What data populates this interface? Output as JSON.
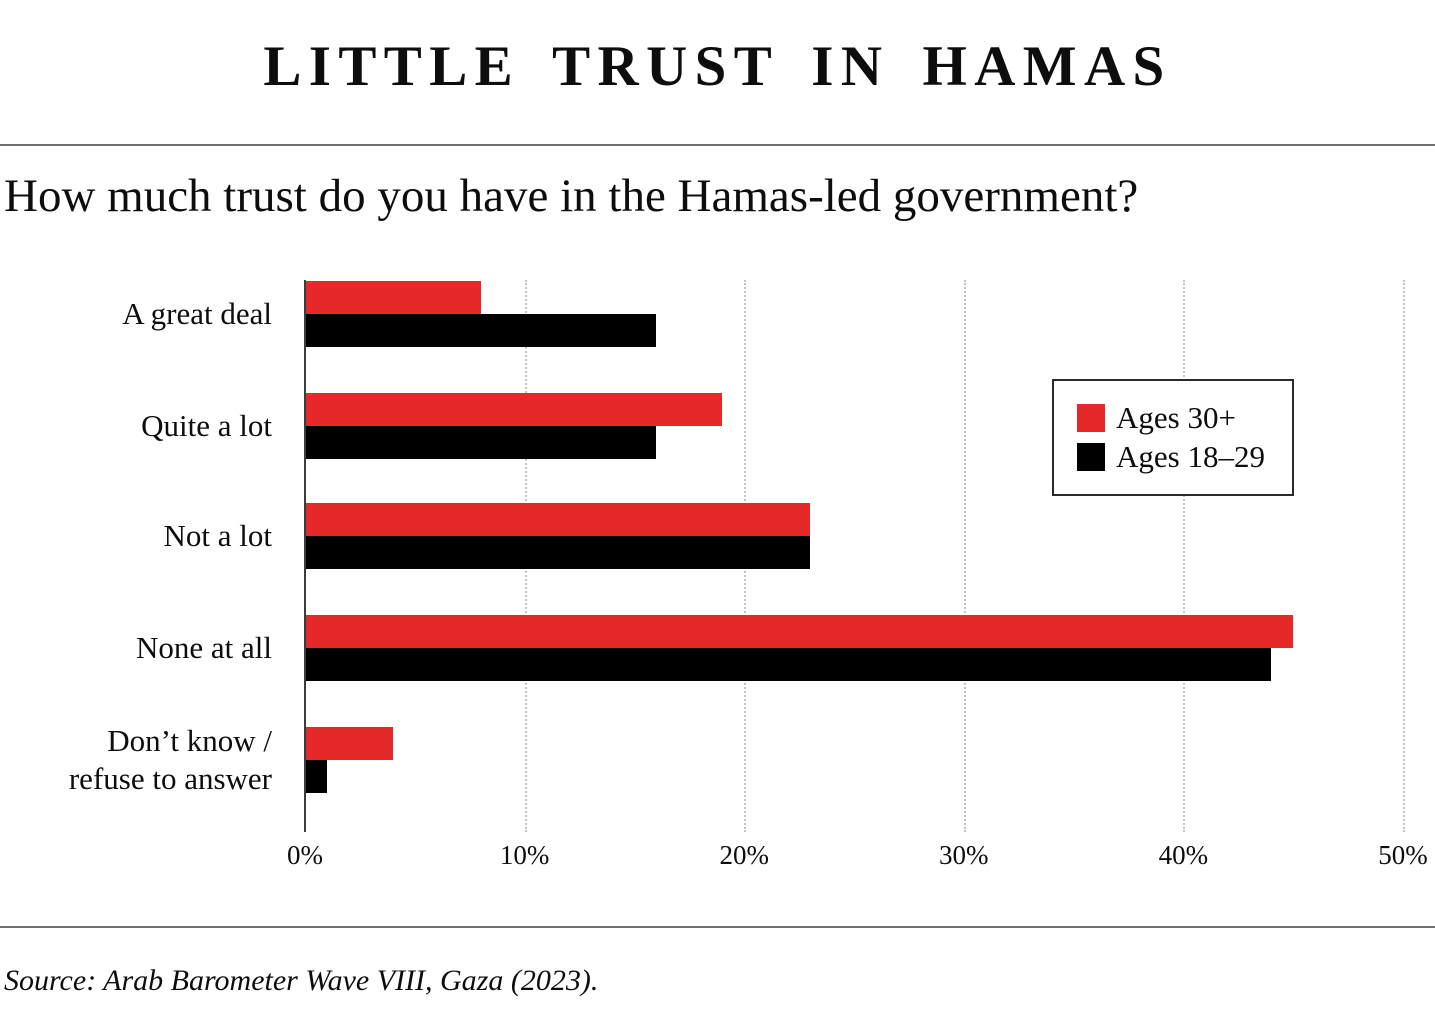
{
  "header": {
    "title": "LITTLE TRUST IN HAMAS"
  },
  "question": "How much trust do you have in the Hamas-led government?",
  "source": "Source: Arab Barometer Wave VIII, Gaza (2023).",
  "colors": {
    "series_red": "#e42928",
    "series_black": "#000000",
    "rule_gray": "#6f6f6f",
    "gridline_gray": "#c4c4c4",
    "axis_gray": "#3c3c3c"
  },
  "legend": {
    "items": [
      {
        "label": "Ages 30+",
        "color": "#e42928"
      },
      {
        "label": "Ages 18–29",
        "color": "#000000"
      }
    ]
  },
  "chart_data": {
    "type": "bar",
    "orientation": "horizontal",
    "title": "LITTLE TRUST IN HAMAS",
    "subtitle": "How much trust do you have in the Hamas-led government?",
    "categories": [
      "A great deal",
      "Quite a lot",
      "Not a lot",
      "None at all",
      "Don’t know /\nrefuse to answer"
    ],
    "series": [
      {
        "name": "Ages 30+",
        "color": "#e42928",
        "values": [
          8,
          19,
          23,
          45,
          4
        ]
      },
      {
        "name": "Ages 18–29",
        "color": "#000000",
        "values": [
          16,
          16,
          23,
          44,
          1
        ]
      }
    ],
    "xlabel": "",
    "ylabel": "",
    "x_ticks": [
      "0%",
      "10%",
      "20%",
      "30%",
      "40%",
      "50%"
    ],
    "xlim": [
      0,
      50
    ],
    "grid": "vertical-dotted",
    "legend_position": "center-right",
    "source": "Source: Arab Barometer Wave VIII, Gaza (2023)."
  }
}
